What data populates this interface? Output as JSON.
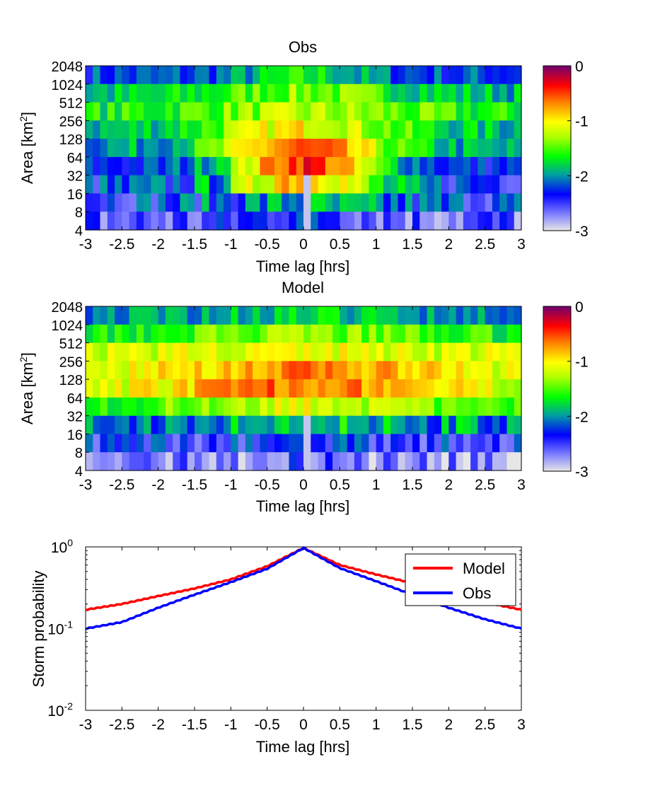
{
  "chart_data": [
    {
      "type": "heatmap",
      "title": "Obs",
      "xlabel": "Time lag [hrs]",
      "ylabel_text": "Area [km",
      "ylabel_sup": "2",
      "ylabel_close": "]",
      "xlim": [
        -3,
        3
      ],
      "x_ticks": [
        "-3",
        "-2.5",
        "-2",
        "-1.5",
        "-1",
        "-0.5",
        "0",
        "0.5",
        "1",
        "1.5",
        "2",
        "2.5",
        "3"
      ],
      "y_ticks": [
        "4",
        "8",
        "16",
        "32",
        "64",
        "128",
        "256",
        "512",
        "1024",
        "2048"
      ],
      "row_centers": [
        "2048",
        "1024",
        "512",
        "256",
        "128",
        "64",
        "32",
        "16",
        "8"
      ],
      "colorbar": {
        "ticks": [
          "0",
          "-1",
          "-2",
          "-3"
        ],
        "range": [
          -3,
          0
        ]
      },
      "field": {
        "center_lag": 0,
        "row_peaks": [
          -1.7,
          -1.4,
          -1.3,
          -1.0,
          -0.6,
          -0.4,
          -0.6,
          -2.0,
          -2.2
        ],
        "row_widths": [
          0.9,
          1.5,
          1.7,
          1.4,
          1.25,
          1.1,
          1.0,
          1.3,
          0.9
        ],
        "row_floors": [
          -2.2,
          -1.9,
          -1.7,
          -1.9,
          -2.0,
          -2.3,
          -2.3,
          -2.3,
          -2.6
        ],
        "noise": 0.25,
        "seed": 7
      }
    },
    {
      "type": "heatmap",
      "title": "Model",
      "xlabel": "Time lag [hrs]",
      "ylabel_text": "Area [km",
      "ylabel_sup": "2",
      "ylabel_close": "]",
      "xlim": [
        -3,
        3
      ],
      "x_ticks": [
        "-3",
        "-2.5",
        "-2",
        "-1.5",
        "-1",
        "-0.5",
        "0",
        "0.5",
        "1",
        "1.5",
        "2",
        "2.5",
        "3"
      ],
      "y_ticks": [
        "4",
        "8",
        "16",
        "32",
        "64",
        "128",
        "256",
        "512",
        "1024",
        "2048"
      ],
      "row_centers": [
        "2048",
        "1024",
        "512",
        "256",
        "128",
        "64",
        "32",
        "16",
        "8"
      ],
      "colorbar": {
        "ticks": [
          "0",
          "-1",
          "-2",
          "-3"
        ],
        "range": [
          -3,
          0
        ]
      },
      "field": {
        "center_lag": 0,
        "row_peaks": [
          -1.8,
          -1.4,
          -1.1,
          -0.7,
          -0.6,
          -1.1,
          -1.7,
          -2.3,
          -2.5
        ],
        "row_widths": [
          1.4,
          2.2,
          2.6,
          2.3,
          2.1,
          1.6,
          1.0,
          0.9,
          0.8
        ],
        "row_floors": [
          -2.0,
          -1.7,
          -1.2,
          -1.3,
          -1.3,
          -1.6,
          -2.0,
          -2.4,
          -2.75
        ],
        "noise": 0.22,
        "seed": 19
      }
    },
    {
      "type": "line",
      "xlabel": "Time lag [hrs]",
      "ylabel": "Storm probability",
      "xlim": [
        -3,
        3
      ],
      "ylim": [
        0.01,
        1
      ],
      "yscale": "log",
      "x_ticks": [
        "-3",
        "-2.5",
        "-2",
        "-1.5",
        "-1",
        "-0.5",
        "0",
        "0.5",
        "1",
        "1.5",
        "2",
        "2.5",
        "3"
      ],
      "y_ticks": [
        {
          "base": "10",
          "exp": "0",
          "value": 1
        },
        {
          "base": "10",
          "exp": "-1",
          "value": 0.1
        },
        {
          "base": "10",
          "exp": "-2",
          "value": 0.01
        }
      ],
      "legend_position": "top-right",
      "series": [
        {
          "name": "Model",
          "color": "#ff0000",
          "x": [
            -3,
            -2.5,
            -2,
            -1.5,
            -1,
            -0.5,
            0,
            0.5,
            1,
            1.5,
            2,
            2.5,
            3
          ],
          "y": [
            0.17,
            0.2,
            0.25,
            0.31,
            0.4,
            0.58,
            0.97,
            0.6,
            0.46,
            0.36,
            0.28,
            0.21,
            0.17
          ]
        },
        {
          "name": "Obs",
          "color": "#0000ff",
          "x": [
            -3,
            -2.5,
            -2,
            -1.5,
            -1,
            -0.5,
            0,
            0.5,
            1,
            1.5,
            2,
            2.5,
            3
          ],
          "y": [
            0.1,
            0.12,
            0.18,
            0.26,
            0.37,
            0.54,
            0.97,
            0.55,
            0.38,
            0.26,
            0.18,
            0.13,
            0.1
          ]
        }
      ]
    }
  ]
}
